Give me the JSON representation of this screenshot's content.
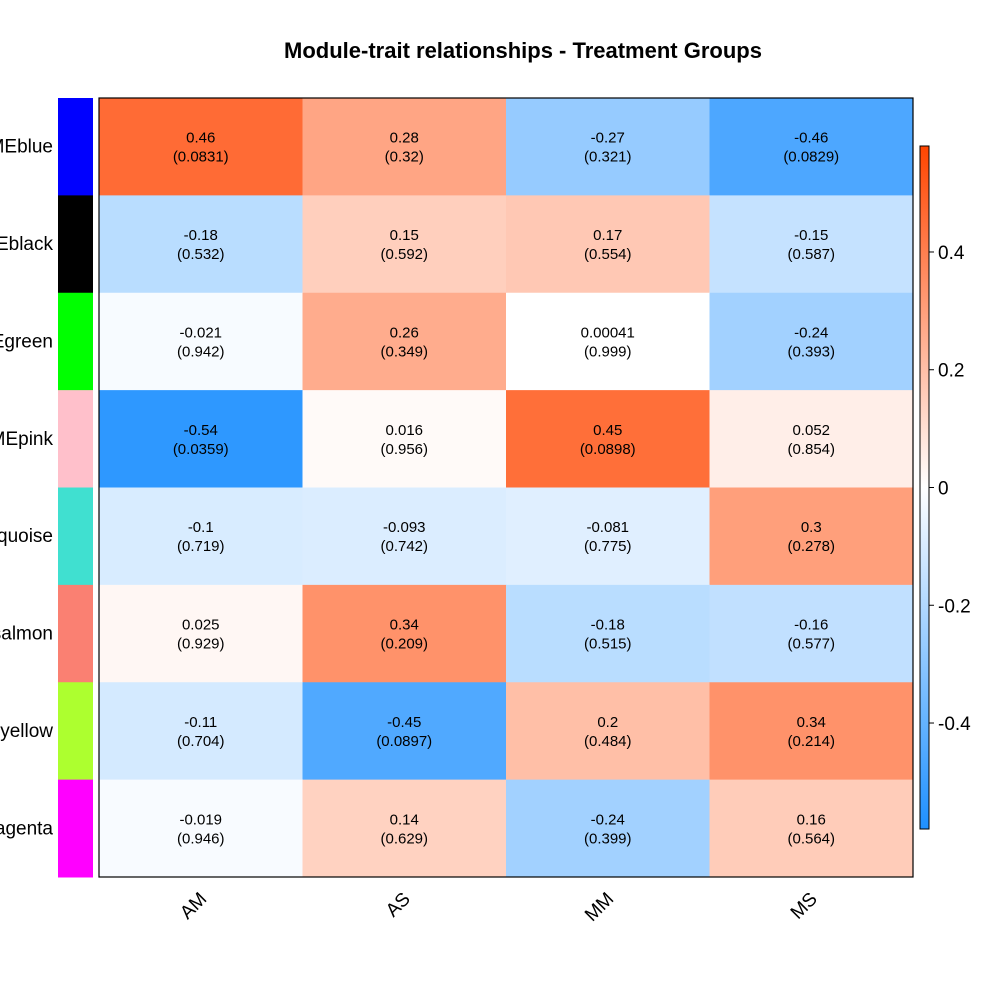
{
  "chart_data": {
    "type": "heatmap",
    "title": "Module-trait relationships - Treatment Groups",
    "columns": [
      "AM",
      "AS",
      "MM",
      "MS"
    ],
    "rows": [
      {
        "label": "MEblue",
        "color": "#0000ff"
      },
      {
        "label": "MEblack",
        "color": "#000000"
      },
      {
        "label": "MEgreen",
        "color": "#00ff00"
      },
      {
        "label": "MEpink",
        "color": "#ffc0cb"
      },
      {
        "label": "MEturquoise",
        "color": "#40e0d0"
      },
      {
        "label": "MEsalmon",
        "color": "#fa8072"
      },
      {
        "label": "MEgreenyellow",
        "color": "#adff2f"
      },
      {
        "label": "MEmagenta",
        "color": "#ff00ff"
      }
    ],
    "values": [
      [
        0.46,
        0.28,
        -0.27,
        -0.46
      ],
      [
        -0.18,
        0.15,
        0.17,
        -0.15
      ],
      [
        -0.021,
        0.26,
        0.00041,
        -0.24
      ],
      [
        -0.54,
        0.016,
        0.45,
        0.052
      ],
      [
        -0.1,
        -0.093,
        -0.081,
        0.3
      ],
      [
        0.025,
        0.34,
        -0.18,
        -0.16
      ],
      [
        -0.11,
        -0.45,
        0.2,
        0.34
      ],
      [
        -0.019,
        0.14,
        -0.24,
        0.16
      ]
    ],
    "pvalues": [
      [
        "0.0831",
        "0.32",
        "0.321",
        "0.0829"
      ],
      [
        "0.532",
        "0.592",
        "0.554",
        "0.587"
      ],
      [
        "0.942",
        "0.349",
        "0.999",
        "0.393"
      ],
      [
        "0.0359",
        "0.956",
        "0.0898",
        "0.854"
      ],
      [
        "0.719",
        "0.742",
        "0.775",
        "0.278"
      ],
      [
        "0.929",
        "0.209",
        "0.515",
        "0.577"
      ],
      [
        "0.704",
        "0.0897",
        "0.484",
        "0.214"
      ],
      [
        "0.946",
        "0.629",
        "0.399",
        "0.564"
      ]
    ],
    "value_labels": [
      [
        "0.46",
        "0.28",
        "-0.27",
        "-0.46"
      ],
      [
        "-0.18",
        "0.15",
        "0.17",
        "-0.15"
      ],
      [
        "-0.021",
        "0.26",
        "0.00041",
        "-0.24"
      ],
      [
        "-0.54",
        "0.016",
        "0.45",
        "0.052"
      ],
      [
        "-0.1",
        "-0.093",
        "-0.081",
        "0.3"
      ],
      [
        "0.025",
        "0.34",
        "-0.18",
        "-0.16"
      ],
      [
        "-0.11",
        "-0.45",
        "0.2",
        "0.34"
      ],
      [
        "-0.019",
        "0.14",
        "-0.24",
        "0.16"
      ]
    ],
    "colorbar": {
      "range": [
        -0.58,
        0.58
      ],
      "ticks": [
        0.4,
        0.2,
        0,
        -0.2,
        -0.4
      ],
      "tick_labels": [
        "0.4",
        "0.2",
        "0",
        "-0.2",
        "-0.4"
      ],
      "low_color": "#1e90ff",
      "mid_color": "#ffffff",
      "high_color": "#ff4500"
    }
  }
}
